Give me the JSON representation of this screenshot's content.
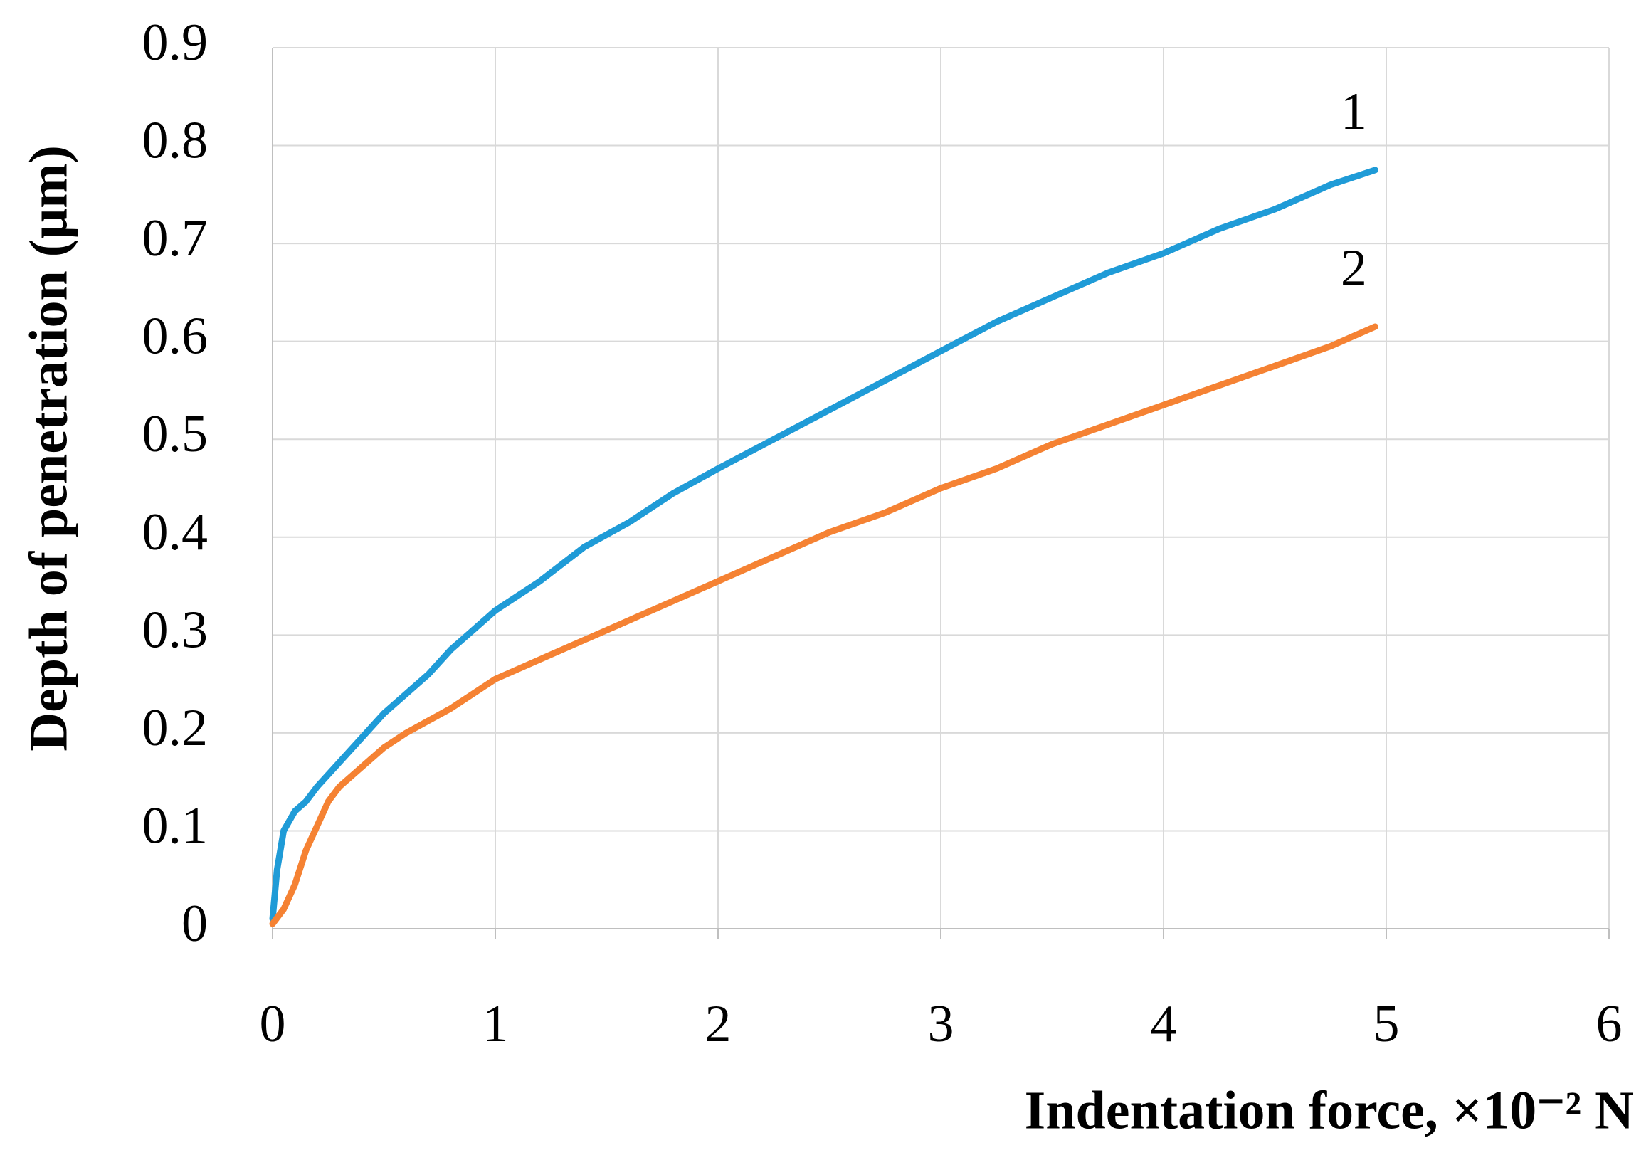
{
  "chart_data": {
    "type": "line",
    "x_label": "Indentation force, ×10⁻² N",
    "y_label": "Depth of penetration (μm)",
    "xlim": [
      0,
      6
    ],
    "xticks": [
      0,
      1,
      2,
      3,
      4,
      5,
      6
    ],
    "ylim": [
      0,
      0.9
    ],
    "yticks": [
      0,
      0.1,
      0.2,
      0.3,
      0.4,
      0.5,
      0.6,
      0.7,
      0.8,
      0.9
    ],
    "grid": true,
    "annotations": [
      "1",
      "2"
    ],
    "series": [
      {
        "color": "#1f9bd7",
        "x": [
          0,
          0.02,
          0.05,
          0.1,
          0.15,
          0.2,
          0.3,
          0.4,
          0.5,
          0.6,
          0.7,
          0.8,
          0.9,
          1,
          1.2,
          1.4,
          1.6,
          1.8,
          2,
          2.25,
          2.5,
          2.75,
          3,
          3.25,
          3.5,
          3.75,
          4,
          4.25,
          4.5,
          4.75,
          4.95
        ],
        "values": [
          0.01,
          0.06,
          0.1,
          0.12,
          0.13,
          0.145,
          0.17,
          0.195,
          0.22,
          0.24,
          0.26,
          0.285,
          0.305,
          0.325,
          0.355,
          0.39,
          0.415,
          0.445,
          0.47,
          0.5,
          0.53,
          0.56,
          0.59,
          0.62,
          0.645,
          0.67,
          0.69,
          0.715,
          0.735,
          0.76,
          0.775
        ]
      },
      {
        "color": "#f58233",
        "x": [
          0,
          0.05,
          0.1,
          0.15,
          0.2,
          0.25,
          0.3,
          0.4,
          0.5,
          0.6,
          0.8,
          1,
          1.25,
          1.5,
          1.75,
          2,
          2.25,
          2.5,
          2.75,
          3,
          3.25,
          3.5,
          3.75,
          4,
          4.25,
          4.5,
          4.75,
          4.95
        ],
        "values": [
          0.005,
          0.02,
          0.045,
          0.08,
          0.105,
          0.13,
          0.145,
          0.165,
          0.185,
          0.2,
          0.225,
          0.255,
          0.28,
          0.305,
          0.33,
          0.355,
          0.38,
          0.405,
          0.425,
          0.45,
          0.47,
          0.495,
          0.515,
          0.535,
          0.555,
          0.575,
          0.595,
          0.615
        ]
      }
    ]
  }
}
